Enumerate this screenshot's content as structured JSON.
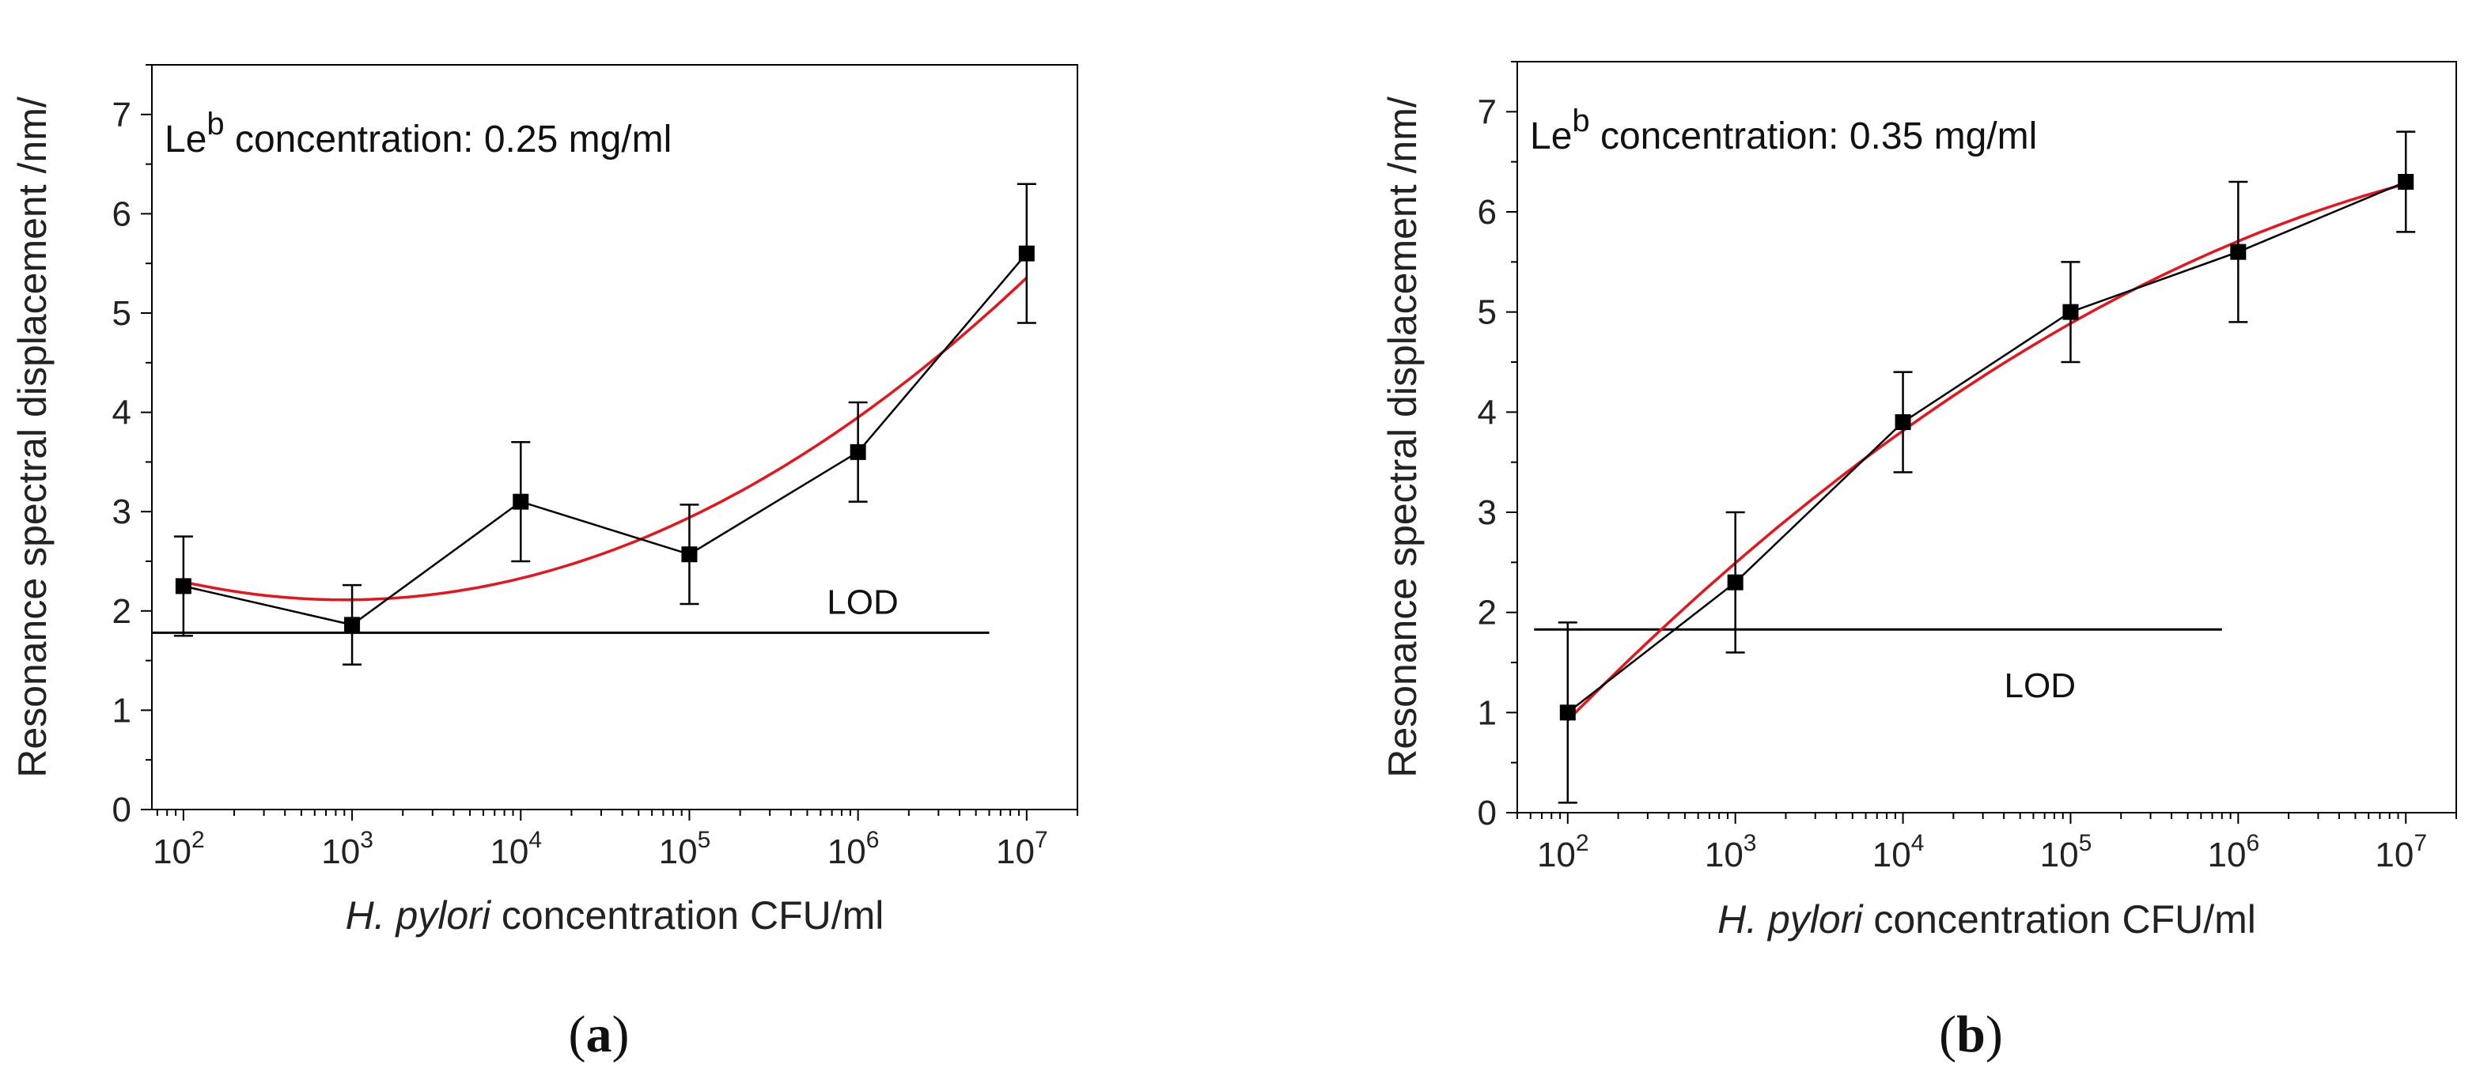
{
  "chart_data": [
    {
      "type": "scatter",
      "panel_label": "a",
      "xlabel_italic": "H. pylori",
      "xlabel_rest": "concentration CFU/ml",
      "ylabel": "Resonance spectral displacement /nm/",
      "x_scale": "log",
      "xlim": [
        65,
        20000000
      ],
      "ylim": [
        0,
        7.5
      ],
      "x_tick_exponents": [
        "2",
        "3",
        "4",
        "5",
        "6",
        "7"
      ],
      "y_ticks": [
        "0",
        "1",
        "2",
        "3",
        "4",
        "5",
        "6",
        "7"
      ],
      "annotation_main": "Le",
      "annotation_sup": "b",
      "annotation_rest": "concentration: 0.25 mg/ml",
      "lod_label": "LOD",
      "lod_value": 1.78,
      "lod_x_range": [
        65,
        6000000
      ],
      "series": [
        {
          "x": [
            100,
            1000,
            10000,
            100000,
            1000000,
            10000000
          ],
          "y": [
            2.25,
            1.86,
            3.1,
            2.57,
            3.6,
            5.6
          ],
          "error": [
            0.5,
            0.4,
            0.6,
            0.5,
            0.5,
            0.7
          ],
          "color": "#000000"
        }
      ],
      "fit": {
        "x": [
          100,
          10000000
        ],
        "y": [
          2.2,
          5.28
        ],
        "color": "#e8141c"
      }
    },
    {
      "type": "scatter",
      "panel_label": "b",
      "xlabel_italic": "H. pylori",
      "xlabel_rest": "concentration CFU/ml",
      "ylabel": "Resonance spectral displacement /nm/",
      "x_scale": "log",
      "xlim": [
        50,
        20000000
      ],
      "ylim": [
        0,
        7.5
      ],
      "x_tick_exponents": [
        "2",
        "3",
        "4",
        "5",
        "6",
        "7"
      ],
      "y_ticks": [
        "0",
        "1",
        "2",
        "3",
        "4",
        "5",
        "6",
        "7"
      ],
      "annotation_main": "Le",
      "annotation_sup": "b",
      "annotation_rest": "concentration: 0.35 mg/ml",
      "lod_label": "LOD",
      "lod_value": 1.83,
      "lod_x_range": [
        63,
        800000
      ],
      "series": [
        {
          "x": [
            100,
            1000,
            10000,
            100000,
            1000000,
            10000000
          ],
          "y": [
            1.0,
            2.3,
            3.9,
            5.0,
            5.6,
            6.3
          ],
          "error": [
            0.9,
            0.7,
            0.5,
            0.5,
            0.7,
            0.5
          ],
          "color": "#000000"
        }
      ],
      "fit": {
        "x": [
          100,
          10000000
        ],
        "y": [
          0.95,
          6.3
        ],
        "color": "#e8141c"
      }
    }
  ]
}
